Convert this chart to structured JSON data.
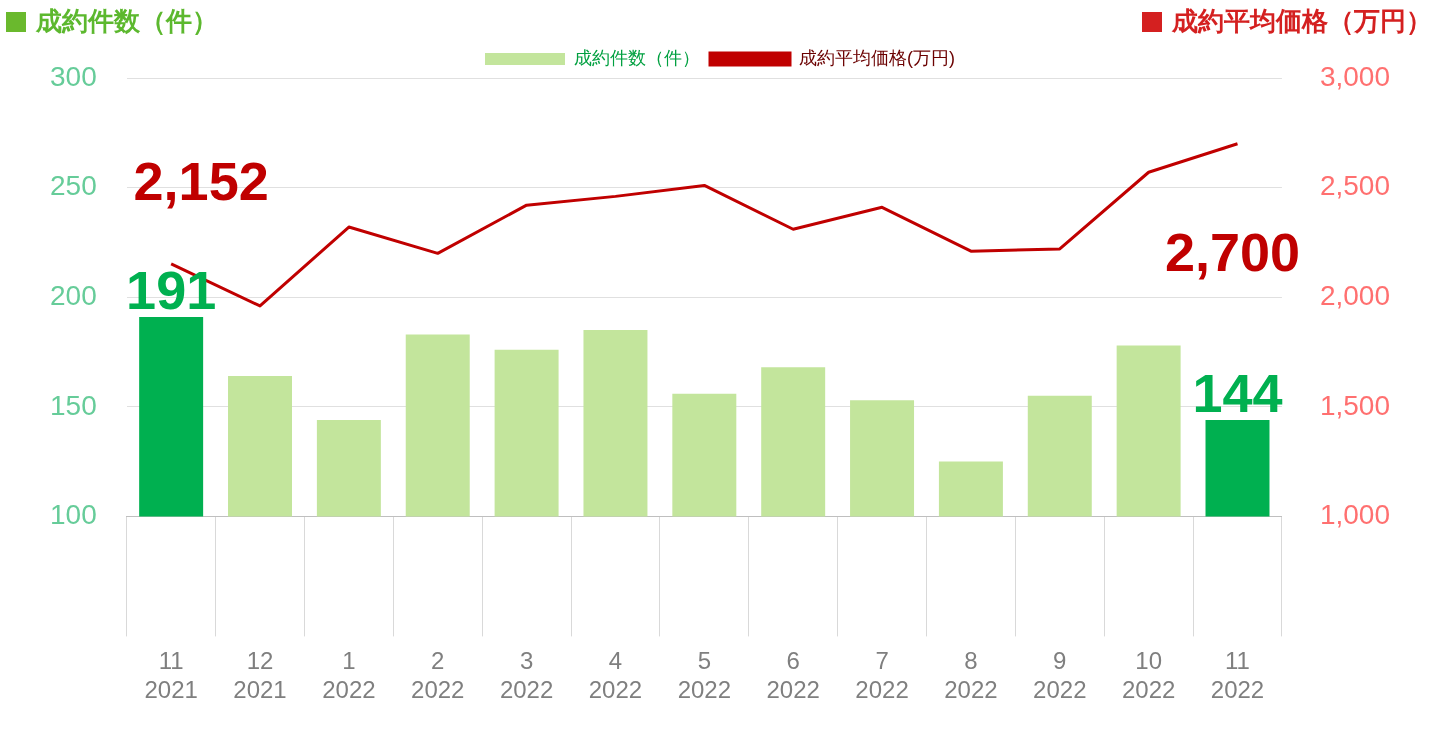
{
  "chart_data": {
    "type": "bar",
    "ylabel": "成約件数（件）",
    "y2label": "成約平均価格（万円）",
    "categories": [
      "11\n2021",
      "12\n2021",
      "1\n2022",
      "2\n2022",
      "3\n2022",
      "4\n2022",
      "5\n2022",
      "6\n2022",
      "7\n2022",
      "8\n2022",
      "9\n2022",
      "10\n2022",
      "11\n2022"
    ],
    "series": [
      {
        "name": "成約件数（件）",
        "color": "#c3e59c",
        "colors": [
          "#00b050",
          "#c3e59c",
          "#c3e59c",
          "#c3e59c",
          "#c3e59c",
          "#c3e59c",
          "#c3e59c",
          "#c3e59c",
          "#c3e59c",
          "#c3e59c",
          "#c3e59c",
          "#c3e59c",
          "#00b050"
        ],
        "values": [
          191,
          164,
          144,
          183,
          176,
          185,
          156,
          168,
          153,
          125,
          155,
          178,
          144
        ],
        "value_labels": [
          "191",
          null,
          null,
          null,
          null,
          null,
          null,
          null,
          null,
          null,
          null,
          null,
          "144"
        ]
      },
      {
        "name": "成約平均価格(万円)",
        "type": "line",
        "axis": "y2",
        "color": "#c00000",
        "values": [
          2152,
          1960,
          2320,
          2200,
          2420,
          2460,
          2510,
          2310,
          2410,
          2210,
          2220,
          2570,
          2700
        ],
        "value_labels": [
          "2,152",
          null,
          null,
          null,
          null,
          null,
          null,
          null,
          null,
          null,
          null,
          null,
          "2,700"
        ]
      }
    ],
    "ylim": [
      100,
      300
    ],
    "yticks": [
      100,
      150,
      200,
      250,
      300
    ],
    "y2lim": [
      1000,
      3000
    ],
    "y2ticks": [
      {
        "value": 1000,
        "label": "1,000"
      },
      {
        "value": 1500,
        "label": "1,500"
      },
      {
        "value": 2000,
        "label": "2,000"
      },
      {
        "value": 2500,
        "label": "2,500"
      },
      {
        "value": 3000,
        "label": "3,000"
      }
    ],
    "grid": "y",
    "legend": "top",
    "marker": "none",
    "line_style": "solid"
  }
}
